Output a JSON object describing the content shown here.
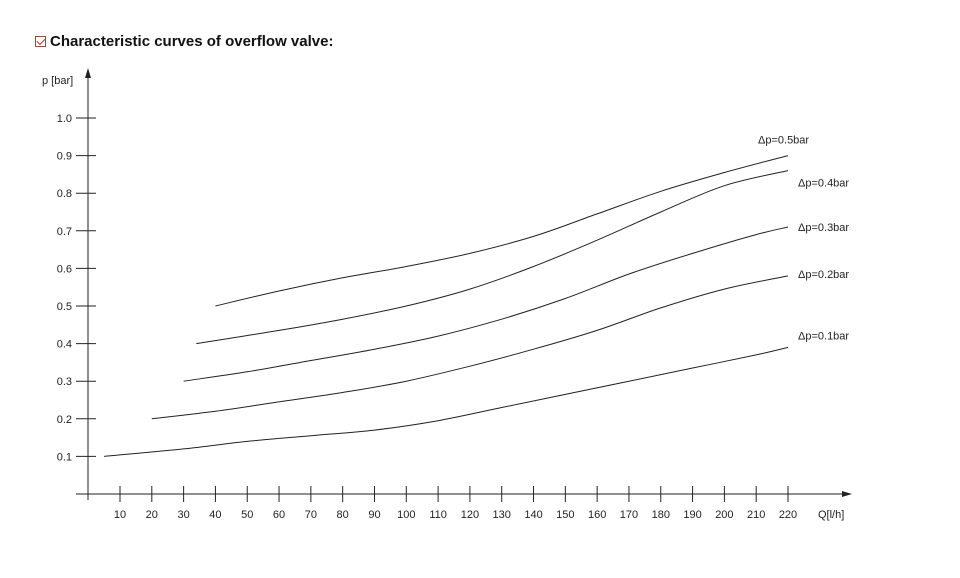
{
  "chart_data": {
    "type": "line",
    "title": "Characteristic curves of overflow valve:",
    "xlabel": "Q[l/h]",
    "ylabel": "p [bar]",
    "xlim": [
      0,
      225
    ],
    "ylim": [
      0,
      1.05
    ],
    "xticks": [
      10,
      20,
      30,
      40,
      50,
      60,
      70,
      80,
      90,
      100,
      110,
      120,
      130,
      140,
      150,
      160,
      170,
      180,
      190,
      200,
      210,
      220
    ],
    "yticks": [
      "0.1",
      "0.2",
      "0.3",
      "0.4",
      "0.5",
      "0.6",
      "0.7",
      "0.8",
      "0.9",
      "1.0"
    ],
    "grid": false,
    "series": [
      {
        "name": "Δp=0.5bar",
        "x": [
          40,
          60,
          80,
          100,
          120,
          140,
          160,
          180,
          200,
          220
        ],
        "y": [
          0.5,
          0.54,
          0.575,
          0.605,
          0.64,
          0.685,
          0.745,
          0.805,
          0.855,
          0.9
        ]
      },
      {
        "name": "Δp=0.4bar",
        "x": [
          34,
          60,
          80,
          100,
          120,
          140,
          160,
          180,
          200,
          220
        ],
        "y": [
          0.4,
          0.435,
          0.465,
          0.5,
          0.545,
          0.605,
          0.675,
          0.75,
          0.82,
          0.86
        ]
      },
      {
        "name": "Δp=0.3bar",
        "x": [
          30,
          50,
          70,
          90,
          110,
          130,
          150,
          170,
          190,
          210,
          220
        ],
        "y": [
          0.3,
          0.325,
          0.355,
          0.385,
          0.42,
          0.465,
          0.52,
          0.585,
          0.64,
          0.69,
          0.71
        ]
      },
      {
        "name": "Δp=0.2bar",
        "x": [
          20,
          40,
          60,
          80,
          100,
          120,
          140,
          160,
          180,
          200,
          220
        ],
        "y": [
          0.2,
          0.22,
          0.245,
          0.27,
          0.3,
          0.34,
          0.385,
          0.435,
          0.495,
          0.545,
          0.58
        ]
      },
      {
        "name": "Δp=0.1bar",
        "x": [
          5,
          30,
          50,
          70,
          90,
          110,
          130,
          150,
          170,
          190,
          210,
          220
        ],
        "y": [
          0.1,
          0.12,
          0.14,
          0.155,
          0.17,
          0.195,
          0.23,
          0.265,
          0.3,
          0.335,
          0.37,
          0.39
        ]
      }
    ]
  }
}
